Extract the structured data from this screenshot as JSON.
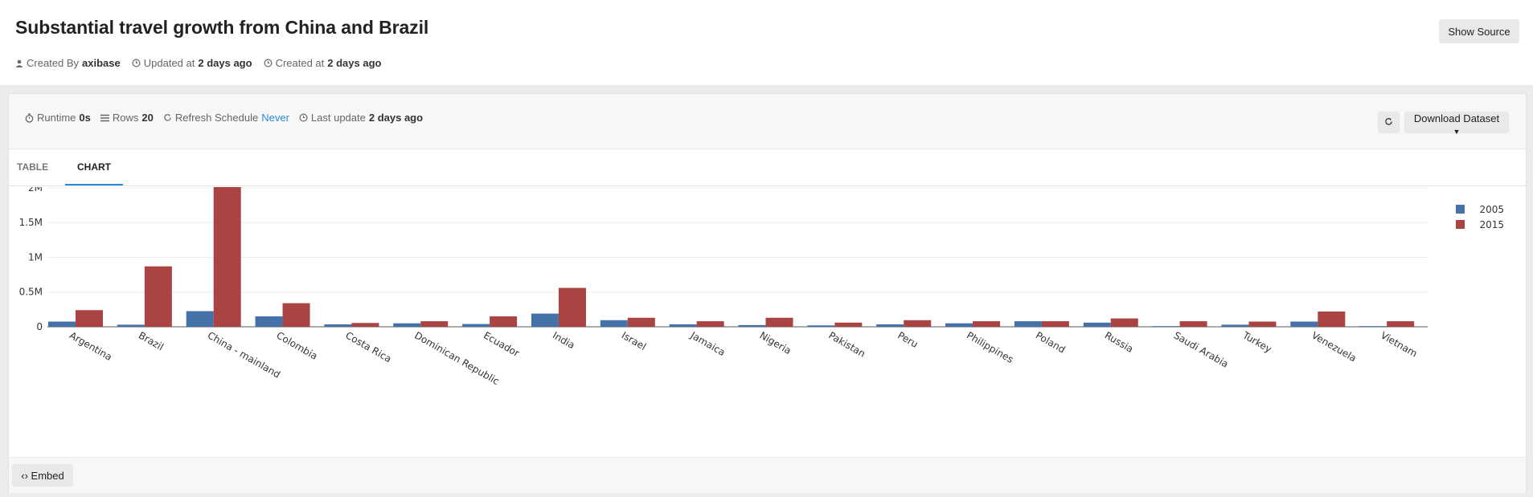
{
  "header": {
    "title": "Substantial travel growth from China and Brazil",
    "created_by_label": "Created By",
    "created_by": "axibase",
    "updated_label": "Updated at",
    "updated": "2 days ago",
    "created_label": "Created at",
    "created": "2 days ago",
    "show_source": "Show Source"
  },
  "stats": {
    "runtime_label": "Runtime",
    "runtime": "0s",
    "rows_label": "Rows",
    "rows": "20",
    "refresh_label": "Refresh Schedule",
    "refresh": "Never",
    "last_update_label": "Last update",
    "last_update": "2 days ago",
    "download": "Download Dataset"
  },
  "tabs": [
    {
      "label": "TABLE",
      "active": false
    },
    {
      "label": "CHART",
      "active": true
    }
  ],
  "footer": {
    "embed": "Embed"
  },
  "chart_data": {
    "type": "bar",
    "categories": [
      "Argentina",
      "Brazil",
      "China - mainland",
      "Colombia",
      "Costa Rica",
      "Dominican Republic",
      "Ecuador",
      "India",
      "Israel",
      "Jamaica",
      "Nigeria",
      "Pakistan",
      "Peru",
      "Philippines",
      "Poland",
      "Russia",
      "Saudi Arabia",
      "Turkey",
      "Venezuela",
      "Vietnam"
    ],
    "series": [
      {
        "name": "2005",
        "color": "#4472a8",
        "values": [
          75000,
          30000,
          225000,
          150000,
          35000,
          50000,
          40000,
          190000,
          95000,
          35000,
          25000,
          20000,
          35000,
          50000,
          80000,
          60000,
          10000,
          30000,
          75000,
          10000
        ]
      },
      {
        "name": "2015",
        "color": "#a94442",
        "values": [
          240000,
          870000,
          2230000,
          340000,
          55000,
          80000,
          150000,
          560000,
          130000,
          80000,
          130000,
          60000,
          95000,
          80000,
          80000,
          120000,
          80000,
          75000,
          220000,
          80000
        ]
      }
    ],
    "yticks": [
      {
        "v": 0,
        "label": "0"
      },
      {
        "v": 500000,
        "label": "0.5M"
      },
      {
        "v": 1000000,
        "label": "1M"
      },
      {
        "v": 1500000,
        "label": "1.5M"
      },
      {
        "v": 2000000,
        "label": "2M"
      }
    ],
    "ylim": [
      0,
      2300000
    ],
    "legend_position": "top-right",
    "grid": true
  }
}
